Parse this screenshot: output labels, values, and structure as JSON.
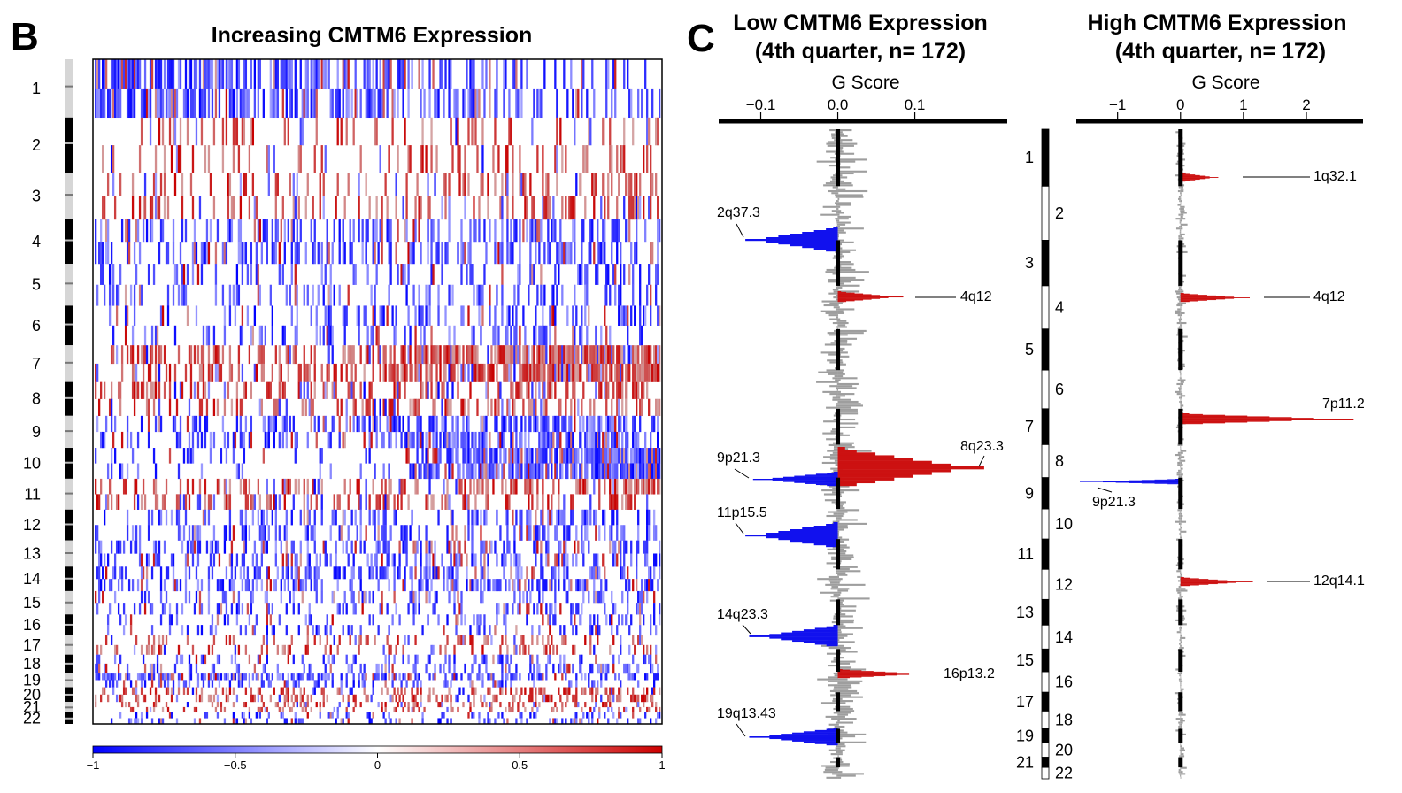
{
  "panel_b": {
    "letter": "B",
    "title": "Increasing CMTM6 Expression",
    "chromosomes": [
      "1",
      "2",
      "3",
      "4",
      "5",
      "6",
      "7",
      "8",
      "9",
      "10",
      "11",
      "12",
      "13",
      "14",
      "15",
      "16",
      "17",
      "18",
      "19",
      "20",
      "21",
      "22"
    ],
    "colorbar": {
      "ticks": [
        "−1",
        "−0.5",
        "0",
        "0.5",
        "1"
      ],
      "low_color": "#0000ff",
      "mid_color": "#ffffff",
      "high_color": "#cc0000"
    }
  },
  "panel_c": {
    "letter": "C",
    "chromosomes": [
      "1",
      "2",
      "3",
      "4",
      "5",
      "6",
      "7",
      "8",
      "9",
      "10",
      "11",
      "12",
      "13",
      "14",
      "15",
      "16",
      "17",
      "18",
      "19",
      "20",
      "21",
      "22"
    ],
    "colors": {
      "amp": "#cc1111",
      "del": "#1111ee",
      "ns": "#9e9e9e",
      "black": "#000000"
    }
  },
  "chart_data": [
    {
      "type": "heatmap",
      "title": "Increasing CMTM6 Expression",
      "rows": "chromosomes 1–22",
      "columns": "samples ordered by increasing CMTM6 expression",
      "value_range": [
        -1,
        1
      ],
      "colorbar_ticks": [
        -1,
        -0.5,
        0,
        0.5,
        1
      ],
      "features": [
        {
          "chromosome": "7",
          "state": "gain",
          "strength_low_expr": 0.3,
          "strength_high_expr": 0.9
        },
        {
          "chromosome": "10",
          "state": "loss",
          "strength_low_expr": 0.1,
          "strength_high_expr": 0.9
        },
        {
          "chromosome": "1p",
          "state": "loss",
          "strength_low_expr": 0.8,
          "strength_high_expr": 0.2
        },
        {
          "chromosome": "19q",
          "state": "loss",
          "strength_low_expr": 0.8,
          "strength_high_expr": 0.3
        }
      ]
    },
    {
      "type": "bar",
      "title_lines": [
        "Low CMTM6 Expression",
        "(4th quarter, n= 172)"
      ],
      "xlabel": "G Score",
      "xlim": [
        -0.15,
        0.22
      ],
      "xticks": [
        -0.1,
        0.0,
        0.1
      ],
      "xtick_labels": [
        "−0.1",
        "0.0",
        "0.1"
      ],
      "peaks": [
        {
          "label": "2q37.3",
          "type": "deletion",
          "g_score": -0.12
        },
        {
          "label": "4q12",
          "type": "amplification",
          "g_score": 0.085
        },
        {
          "label": "8q23.3",
          "type": "amplification",
          "g_score": 0.19
        },
        {
          "label": "9p21.3",
          "type": "deletion",
          "g_score": -0.11
        },
        {
          "label": "11p15.5",
          "type": "deletion",
          "g_score": -0.12
        },
        {
          "label": "14q23.3",
          "type": "deletion",
          "g_score": -0.115
        },
        {
          "label": "16p13.2",
          "type": "amplification",
          "g_score": 0.12
        },
        {
          "label": "19q13.43",
          "type": "deletion",
          "g_score": -0.115
        }
      ]
    },
    {
      "type": "bar",
      "title_lines": [
        "High CMTM6 Expression",
        "(4th quarter, n= 172)"
      ],
      "xlabel": "G Score",
      "xlim": [
        -1.6,
        2.9
      ],
      "xticks": [
        -1,
        0,
        1,
        2
      ],
      "xtick_labels": [
        "−1",
        "0",
        "1",
        "2"
      ],
      "peaks": [
        {
          "label": "1q32.1",
          "type": "amplification",
          "g_score": 0.6
        },
        {
          "label": "4q12",
          "type": "amplification",
          "g_score": 1.1
        },
        {
          "label": "7p11.2",
          "type": "amplification",
          "g_score": 2.75
        },
        {
          "label": "9p21.3",
          "type": "deletion",
          "g_score": -1.6
        },
        {
          "label": "12q14.1",
          "type": "amplification",
          "g_score": 1.15
        }
      ]
    }
  ]
}
